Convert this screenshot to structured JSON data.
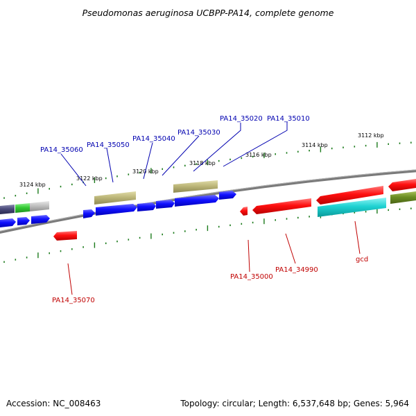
{
  "title": "Pseudomonas aeruginosa UCBPP-PA14, complete genome",
  "footer": {
    "accession": "Accession: NC_008463",
    "summary": "Topology: circular; Length: 6,537,648 bp; Genes: 5,964"
  },
  "colors": {
    "backbone": "#7a7a7a",
    "tick": "#1a7a1a",
    "forward_label": "#0000b0",
    "reverse_label": "#c00000"
  },
  "ticks": [
    {
      "label": "3124 kbp"
    },
    {
      "label": "3122 kbp"
    },
    {
      "label": "3120 kbp"
    },
    {
      "label": "3118 kbp"
    },
    {
      "label": "3116 kbp"
    },
    {
      "label": "3114 kbp"
    },
    {
      "label": "3112 kbp"
    }
  ],
  "gene_labels": [
    {
      "label": "PA14_35060",
      "strand": "forward"
    },
    {
      "label": "PA14_35050",
      "strand": "forward"
    },
    {
      "label": "PA14_35040",
      "strand": "forward"
    },
    {
      "label": "PA14_35030",
      "strand": "forward"
    },
    {
      "label": "PA14_35020",
      "strand": "forward"
    },
    {
      "label": "PA14_35010",
      "strand": "forward"
    },
    {
      "label": "PA14_35070",
      "strand": "reverse"
    },
    {
      "label": "PA14_35000",
      "strand": "reverse"
    },
    {
      "label": "PA14_34990",
      "strand": "reverse"
    },
    {
      "label": "gcd",
      "strand": "reverse"
    }
  ]
}
